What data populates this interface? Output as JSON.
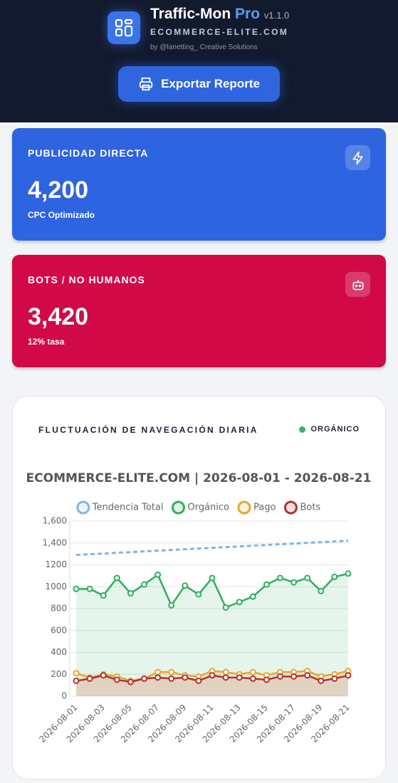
{
  "header": {
    "title": "Traffic-Mon",
    "title_accent": "Pro",
    "version": "v1.1.0",
    "site": "ECOMMERCE-ELITE.COM",
    "credit": "by @lanetting_ Creative Solutions",
    "button": "Exportar Reporte"
  },
  "cards": [
    {
      "label": "PUBLICIDAD DIRECTA",
      "value": "4,200",
      "note": "CPC Optimizado"
    },
    {
      "label": "BOTS / NO HUMANOS",
      "value": "3,420",
      "note": "12% tasa"
    }
  ],
  "panel": {
    "title": "FLUCTUACIÓN DE NAVEGACIÓN DIARIA",
    "badge": "ORGÁNICO"
  },
  "chart_data": {
    "type": "line",
    "title": "ECOMMERCE-ELITE.COM | 2026-08-01 - 2026-08-21",
    "categories": [
      "2026-08-01",
      null,
      "2026-08-03",
      null,
      "2026-08-05",
      null,
      "2026-08-07",
      null,
      "2026-08-09",
      null,
      "2026-08-11",
      null,
      "2026-08-13",
      null,
      "2026-08-15",
      null,
      "2026-08-17",
      null,
      "2026-08-19",
      null,
      "2026-08-21"
    ],
    "series": [
      {
        "name": "Tendencia Total",
        "color": "#7db6e4",
        "dashed": true,
        "markers": false,
        "fill": false,
        "values": [
          1290,
          1297,
          1303,
          1310,
          1316,
          1323,
          1329,
          1336,
          1342,
          1349,
          1355,
          1362,
          1368,
          1375,
          1381,
          1388,
          1394,
          1401,
          1407,
          1414,
          1420
        ]
      },
      {
        "name": "Orgánico",
        "color": "#2eaf5c",
        "dashed": false,
        "markers": true,
        "fill": true,
        "values": [
          980,
          980,
          920,
          1080,
          940,
          1020,
          1110,
          830,
          1010,
          930,
          1080,
          810,
          860,
          910,
          1020,
          1080,
          1040,
          1080,
          960,
          1090,
          1120
        ]
      },
      {
        "name": "Pago",
        "color": "#e6a633",
        "dashed": false,
        "markers": true,
        "fill": true,
        "values": [
          210,
          170,
          200,
          180,
          140,
          160,
          220,
          220,
          190,
          180,
          230,
          220,
          200,
          220,
          190,
          220,
          220,
          230,
          180,
          200,
          230
        ]
      },
      {
        "name": "Bots",
        "color": "#b53030",
        "dashed": false,
        "markers": true,
        "fill": true,
        "values": [
          140,
          160,
          190,
          150,
          130,
          160,
          170,
          160,
          170,
          140,
          190,
          170,
          170,
          160,
          150,
          180,
          180,
          190,
          140,
          160,
          190
        ]
      }
    ],
    "ylim": [
      0,
      1600
    ],
    "yticks": [
      0,
      200,
      400,
      600,
      800,
      1000,
      1200,
      {
        "value": 1400,
        "label": "1,400"
      },
      {
        "value": 1600,
        "label": "1,600"
      }
    ],
    "grid": true,
    "legend": "top"
  }
}
